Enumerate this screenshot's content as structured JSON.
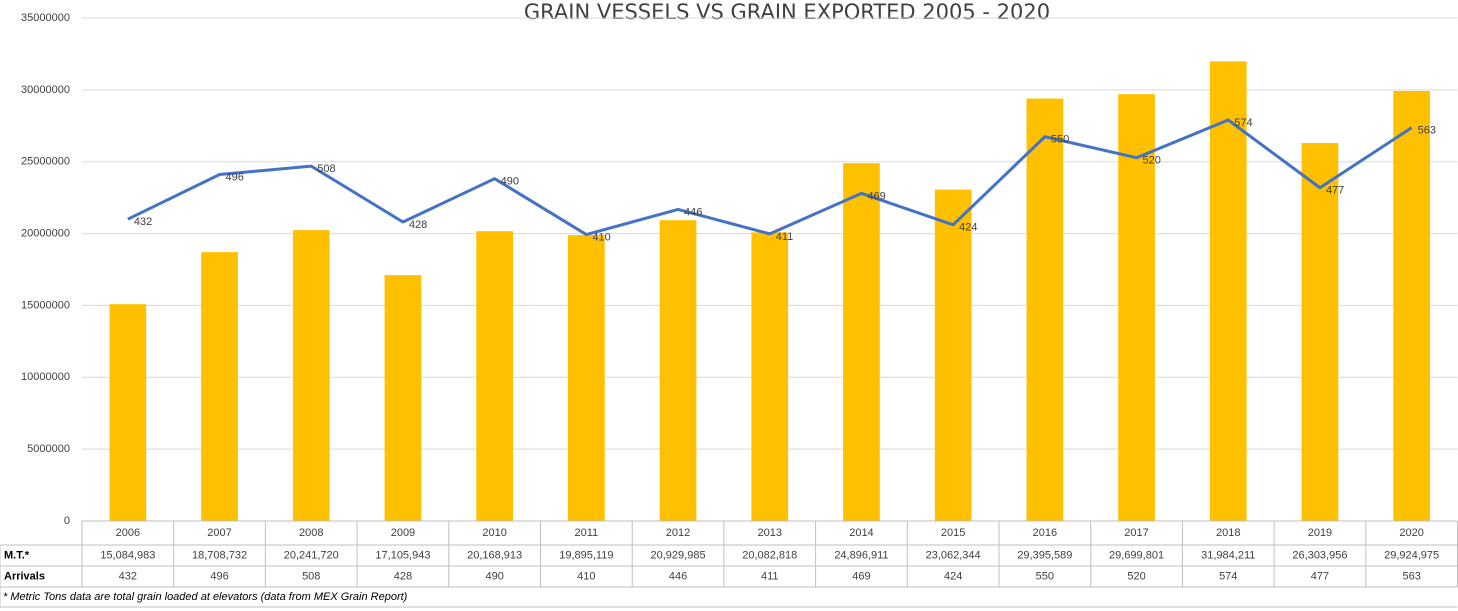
{
  "chart_data": {
    "type": "bar_line",
    "title": "GRAIN VESSELS VS GRAIN EXPORTED    2005 - 2020",
    "categories": [
      "2006",
      "2007",
      "2008",
      "2009",
      "2010",
      "2011",
      "2012",
      "2013",
      "2014",
      "2015",
      "2016",
      "2017",
      "2018",
      "2019",
      "2020"
    ],
    "series": [
      {
        "name": "M.T.*",
        "color": "#ffc000",
        "type": "bar",
        "values": [
          15084983,
          18708732,
          20241720,
          17105943,
          20168913,
          19895119,
          20929985,
          20082818,
          24896911,
          23062344,
          29395589,
          29699801,
          31984211,
          26303956,
          29924975
        ],
        "value_labels": [
          "15,084,983",
          "18,708,732",
          "20,241,720",
          "17,105,943",
          "20,168,913",
          "19,895,119",
          "20,929,985",
          "20,082,818",
          "24,896,911",
          "23,062,344",
          "29,395,589",
          "29,699,801",
          "31,984,211",
          "26,303,956",
          "29,924,975"
        ]
      },
      {
        "name": "Arrivals",
        "color": "#4472c4",
        "type": "line",
        "axis": "y2",
        "values": [
          432,
          496,
          508,
          428,
          490,
          410,
          446,
          411,
          469,
          424,
          550,
          520,
          574,
          477,
          563
        ]
      }
    ],
    "ylim": [
      0,
      35000000
    ],
    "yticks": [
      0,
      5000000,
      10000000,
      15000000,
      20000000,
      25000000,
      30000000,
      35000000
    ],
    "y2lim": [
      0,
      720
    ],
    "grid": true,
    "footnote": "* Metric Tons data are total grain loaded at elevators (data from MEX Grain Report)"
  }
}
